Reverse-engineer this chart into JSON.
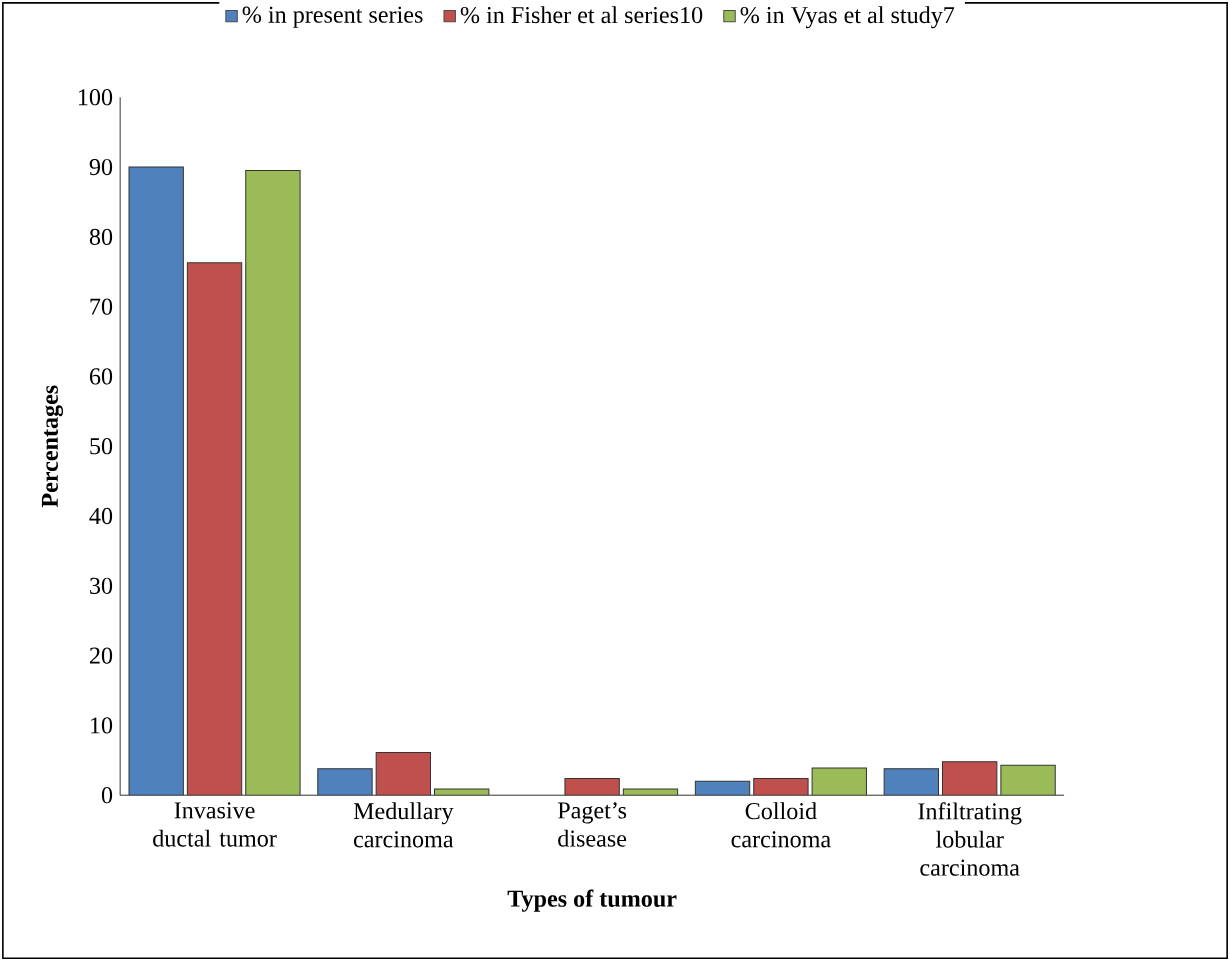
{
  "chart_data": {
    "type": "bar",
    "xlabel": "Types of tumour",
    "ylabel": "Percentages",
    "categories": [
      "Invasive ductal tumor",
      "Medullary carcinoma",
      "Paget’s disease",
      "Colloid carcinoma",
      "Infiltrating lobular carcinoma"
    ],
    "series": [
      {
        "name": "%  in present series",
        "color": "#4f81bd",
        "values": [
          90,
          3.8,
          0,
          2,
          3.8
        ]
      },
      {
        "name": "% in Fisher et al series10",
        "color": "#c0504d",
        "values": [
          76.3,
          6.1,
          2.4,
          2.4,
          4.8
        ]
      },
      {
        "name": "% in Vyas et al study7",
        "color": "#9bbb59",
        "values": [
          89.5,
          0.9,
          0.9,
          3.9,
          4.3
        ]
      }
    ],
    "ylim": [
      0,
      100
    ],
    "yticks": [
      0,
      10,
      20,
      30,
      40,
      50,
      60,
      70,
      80,
      90,
      100
    ],
    "grid": false,
    "legend": "top"
  }
}
